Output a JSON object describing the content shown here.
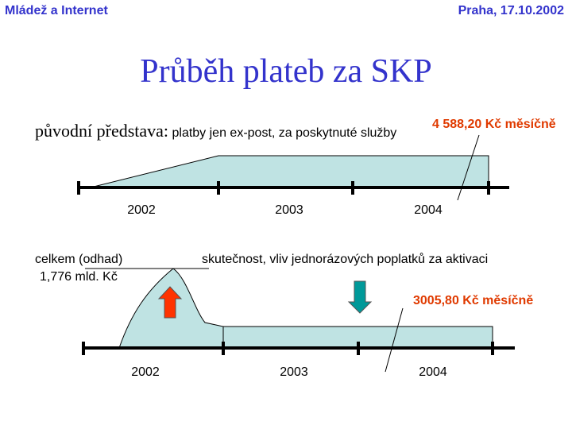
{
  "header": {
    "left": "Mládež a Internet",
    "right": "Praha, 17.10.2002"
  },
  "title": "Průběh plateb za SKP",
  "top": {
    "label_serif": "původní představa:",
    "label_rest": "platby jen ex-post, za poskytnuté  služby",
    "annotation": "4 588,20 Kč měsíčně",
    "years": [
      "2002",
      "2003",
      "2004"
    ]
  },
  "bottom": {
    "total_label": "celkem (odhad)",
    "total_value": "1,776 mld. Kč",
    "caption": "skutečnost, vliv jednorázových poplatků za aktivaci",
    "annotation": "3005,80 Kč měsíčně",
    "years": [
      "2002",
      "2003",
      "2004"
    ]
  }
}
